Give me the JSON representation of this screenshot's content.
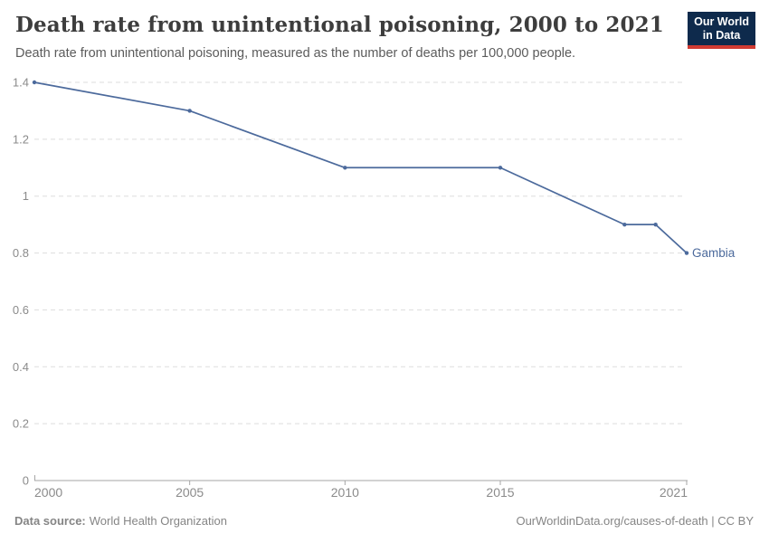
{
  "header": {
    "title": "Death rate from unintentional poisoning, 2000 to 2021",
    "subtitle": "Death rate from unintentional poisoning, measured as the number of deaths per 100,000 people."
  },
  "logo": {
    "line1": "Our World",
    "line2": "in Data",
    "bg_color": "#0e2a4c",
    "accent_color": "#d13b32"
  },
  "footer": {
    "data_source_label": "Data source:",
    "data_source_value": "World Health Organization",
    "credit": "OurWorldinData.org/causes-of-death | CC BY"
  },
  "chart_data": {
    "type": "line",
    "title": "Death rate from unintentional poisoning, 2000 to 2021",
    "xlabel": "",
    "ylabel": "",
    "xlim": [
      2000,
      2021
    ],
    "ylim": [
      0,
      1.4
    ],
    "x_ticks": [
      "2000",
      "2005",
      "2010",
      "2015",
      "2021"
    ],
    "y_ticks": [
      "0",
      "0.2",
      "0.4",
      "0.6",
      "0.8",
      "1",
      "1.2",
      "1.4"
    ],
    "grid": "horizontal-dashed",
    "legend_position": "end-of-line-label",
    "series": [
      {
        "name": "Gambia",
        "color": "#4C6A9C",
        "x": [
          2000,
          2005,
          2010,
          2015,
          2019,
          2020,
          2021
        ],
        "values": [
          1.4,
          1.3,
          1.1,
          1.1,
          0.9,
          0.9,
          0.8
        ]
      }
    ],
    "colors": {
      "grid": "#dddddd",
      "axis": "#a5a5a5",
      "tick_labels": "#8b8b8b"
    }
  }
}
